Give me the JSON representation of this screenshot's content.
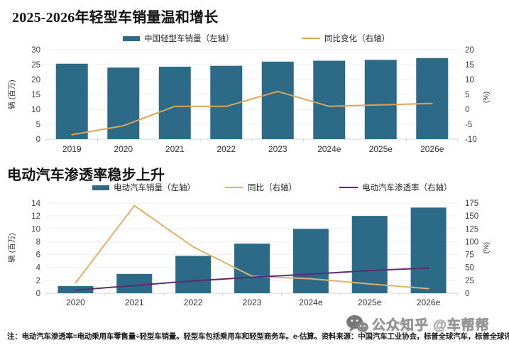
{
  "chart_data": [
    {
      "type": "bar+line",
      "title": "2025-2026年轻型车销量温和增长",
      "categories": [
        "2019",
        "2020",
        "2021",
        "2022",
        "2023",
        "2024e",
        "2025e",
        "2026e"
      ],
      "series": [
        {
          "name": "中国轻型车销量（左轴）",
          "type": "bar",
          "axis": "left",
          "color": "#2d6a87",
          "values": [
            25.3,
            24.0,
            24.3,
            24.6,
            26.0,
            26.3,
            26.6,
            27.2
          ]
        },
        {
          "name": "同比变化（右轴）",
          "type": "line",
          "axis": "right",
          "color": "#dfa355",
          "values": [
            -8.5,
            -5.5,
            1,
            1,
            6,
            1,
            1.5,
            2
          ]
        }
      ],
      "left_axis": {
        "label": "辆 (百万)",
        "min": 0,
        "max": 30,
        "ticks": [
          0,
          5,
          10,
          15,
          20,
          25,
          30
        ]
      },
      "right_axis": {
        "label": "(%)",
        "min": -10,
        "max": 20,
        "ticks": [
          -10,
          -5,
          0,
          5,
          10,
          15,
          20
        ]
      },
      "grid": "horizontal",
      "legend_position": "top"
    },
    {
      "type": "bar+line",
      "title": "电动汽车渗透率稳步上升",
      "categories": [
        "2020",
        "2021",
        "2022",
        "2023",
        "2024e",
        "2025e",
        "2026e"
      ],
      "series": [
        {
          "name": "电动汽车销量（左轴）",
          "type": "bar",
          "axis": "left",
          "color": "#2d6a87",
          "values": [
            1.1,
            3.0,
            5.8,
            7.7,
            10.0,
            12.0,
            13.3
          ]
        },
        {
          "name": "同比（右轴）",
          "type": "line",
          "axis": "right",
          "color": "#ddb172",
          "values": [
            20,
            170,
            90,
            33,
            28,
            18,
            9
          ]
        },
        {
          "name": "电动汽车渗透率（右轴）",
          "type": "line",
          "axis": "right",
          "color": "#5e2a75",
          "values": [
            6,
            15,
            24,
            31,
            37,
            44,
            49
          ]
        }
      ],
      "left_axis": {
        "label": "辆 (百万)",
        "min": 0,
        "max": 14,
        "ticks": [
          0,
          2,
          4,
          6,
          8,
          10,
          12,
          14
        ]
      },
      "right_axis": {
        "label": "(%)",
        "min": 0,
        "max": 175,
        "ticks": [
          0,
          25,
          50,
          75,
          100,
          125,
          150,
          175
        ]
      },
      "grid": "horizontal",
      "legend_position": "top"
    }
  ],
  "footnote": "注：电动汽车渗透率=电动乘用车零售量÷轻型车销量。轻型车包括乘用车和轻型商务车。e-估算。资料来源：中国汽车工业协会，标普全球汽车，标普全球评级。",
  "watermark": {
    "icon": "wechat-icon",
    "text": "公众知乎 @车帮帮"
  },
  "colors": {
    "bar": "#2d6a87",
    "yoy_line_top": "#dfa355",
    "yoy_line_bottom": "#ddb172",
    "penetration_line": "#5e2a75",
    "grid": "#efefef",
    "axis": "#d6d6d6",
    "text": "#404040"
  }
}
